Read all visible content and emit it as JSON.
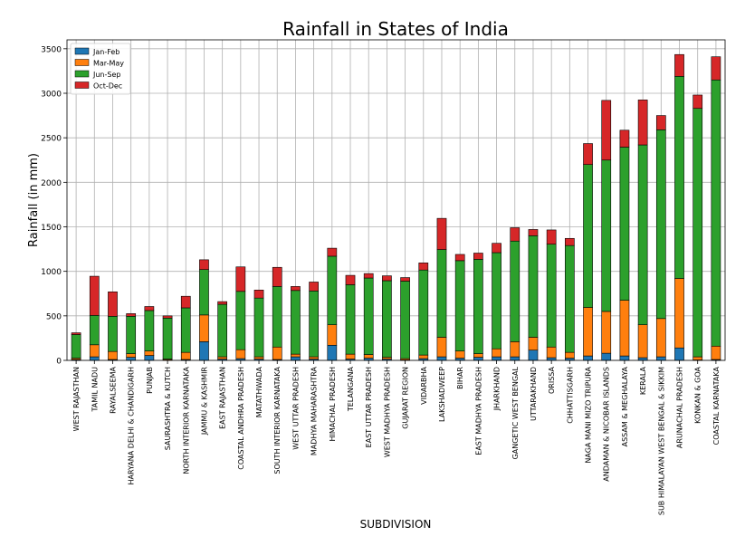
{
  "chart_data": {
    "type": "bar",
    "stacked": true,
    "title": "Rainfall in States of India",
    "xlabel": "SUBDIVISION",
    "ylabel": "Rainfall (in mm)",
    "ylim": [
      0,
      3600
    ],
    "yticks": [
      0,
      500,
      1000,
      1500,
      2000,
      2500,
      3000,
      3500
    ],
    "grid": true,
    "legend_position": "top-left",
    "categories": [
      "WEST RAJASTHAN",
      "TAMIL NADU",
      "RAYALSEEMA",
      "HARYANA DELHI & CHANDIGARH",
      "PUNJAB",
      "SAURASHTRA & KUTCH",
      "NORTH INTERIOR KARNATAKA",
      "JAMMU & KASHMIR",
      "EAST RAJASTHAN",
      "COASTAL ANDHRA PRADESH",
      "MATATHWADA",
      "SOUTH INTERIOR KARNATAKA",
      "WEST UTTAR PRADESH",
      "MADHYA MAHARASHTRA",
      "HIMACHAL PRADESH",
      "TELANGANA",
      "EAST UTTAR PRADESH",
      "WEST MADHYA PRADESH",
      "GUJARAT REGION",
      "VIDARBHA",
      "LAKSHADWEEP",
      "BIHAR",
      "EAST MADHYA PRADESH",
      "JHARKHAND",
      "GANGETIC WEST BENGAL",
      "UTTARAKHAND",
      "ORISSA",
      "CHHATTISGARH",
      "NAGA MANI MIZO TRIPURA",
      "ANDAMAN & NICOBAR ISLANDS",
      "ASSAM & MEGHALAYA",
      "KERALA",
      "SUB HIMALAYAN WEST BENGAL & SIKKIM",
      "ARUNACHAL PRADESH",
      "KONKAN & GOA",
      "COASTAL KARNATAKA"
    ],
    "series": [
      {
        "name": "Jan-Feb",
        "color": "#1f77b4",
        "values": [
          10,
          40,
          10,
          35,
          55,
          5,
          10,
          210,
          15,
          20,
          15,
          10,
          40,
          15,
          170,
          15,
          25,
          15,
          5,
          20,
          40,
          25,
          35,
          40,
          40,
          115,
          30,
          25,
          50,
          80,
          50,
          30,
          40,
          140,
          5,
          10
        ]
      },
      {
        "name": "Mar-May",
        "color": "#ff7f0e",
        "values": [
          15,
          135,
          90,
          40,
          50,
          10,
          80,
          300,
          25,
          100,
          25,
          140,
          30,
          25,
          230,
          55,
          40,
          20,
          15,
          40,
          220,
          80,
          40,
          90,
          170,
          145,
          120,
          65,
          545,
          470,
          625,
          370,
          430,
          780,
          35,
          150
        ]
      },
      {
        "name": "Jun-Sep",
        "color": "#2ca02c",
        "values": [
          265,
          330,
          395,
          420,
          455,
          460,
          500,
          510,
          590,
          655,
          660,
          680,
          715,
          740,
          770,
          780,
          860,
          860,
          870,
          955,
          985,
          1015,
          1060,
          1080,
          1130,
          1140,
          1155,
          1200,
          1605,
          1700,
          1720,
          2020,
          2120,
          2270,
          2790,
          2990
        ]
      },
      {
        "name": "Oct-Dec",
        "color": "#d62728",
        "values": [
          20,
          440,
          275,
          30,
          45,
          25,
          130,
          110,
          30,
          275,
          90,
          215,
          45,
          100,
          90,
          105,
          50,
          55,
          40,
          80,
          350,
          70,
          70,
          105,
          150,
          70,
          160,
          80,
          235,
          670,
          190,
          505,
          160,
          245,
          150,
          260
        ]
      }
    ]
  }
}
